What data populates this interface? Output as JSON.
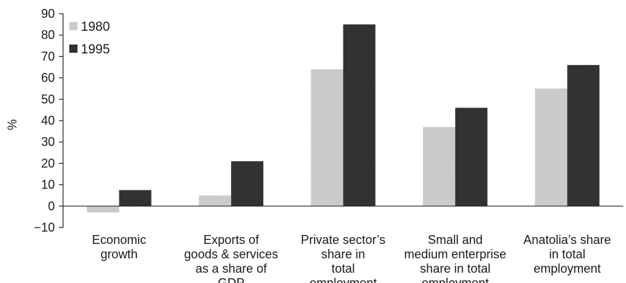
{
  "chart_data": {
    "type": "bar",
    "title": "",
    "xlabel": "",
    "ylabel": "%",
    "ylim": [
      -10,
      90
    ],
    "yticks": [
      90,
      80,
      70,
      60,
      50,
      40,
      30,
      20,
      10,
      0,
      "−10"
    ],
    "grid": false,
    "legend_position": "top-left",
    "categories": [
      [
        "Economic",
        "growth"
      ],
      [
        "Exports of",
        "goods & services",
        "as a share of",
        "GDP"
      ],
      [
        "Private sector’s",
        "share in",
        "total",
        "employment"
      ],
      [
        "Small and",
        "medium enterprise",
        "share in total",
        "employment"
      ],
      [
        "Anatolia’s share",
        "in total",
        "employment"
      ]
    ],
    "series": [
      {
        "name": "1980",
        "color": "#cccccc",
        "values": [
          -3,
          5,
          64,
          37,
          55
        ]
      },
      {
        "name": "1995",
        "color": "#3a3a3a",
        "values": [
          7.5,
          21,
          85,
          46,
          66
        ]
      }
    ]
  }
}
